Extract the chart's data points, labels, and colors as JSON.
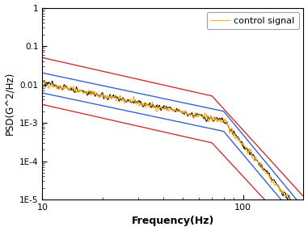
{
  "title": "",
  "xlabel": "Frequency(Hz)",
  "ylabel": "PSD(G^2/Hz)",
  "xlim": [
    10,
    200
  ],
  "ylim": [
    1e-05,
    1
  ],
  "legend_label": "control signal",
  "blue_upper": {
    "x": [
      10,
      80,
      200
    ],
    "y": [
      0.02,
      0.002,
      6e-06
    ]
  },
  "blue_lower": {
    "x": [
      10,
      80,
      200
    ],
    "y": [
      0.006,
      0.0006,
      2e-06
    ]
  },
  "red_upper": {
    "x": [
      10,
      70,
      200
    ],
    "y": [
      0.05,
      0.005,
      1.2e-05
    ]
  },
  "red_lower": {
    "x": [
      10,
      70,
      200
    ],
    "y": [
      0.003,
      0.0003,
      8e-07
    ]
  },
  "blue_color": "#3366cc",
  "red_color": "#cc3333",
  "orange_color": "#FFA500",
  "black_color": "#000000",
  "background_color": "#ffffff",
  "seed": 42,
  "signal_n_points": 600
}
